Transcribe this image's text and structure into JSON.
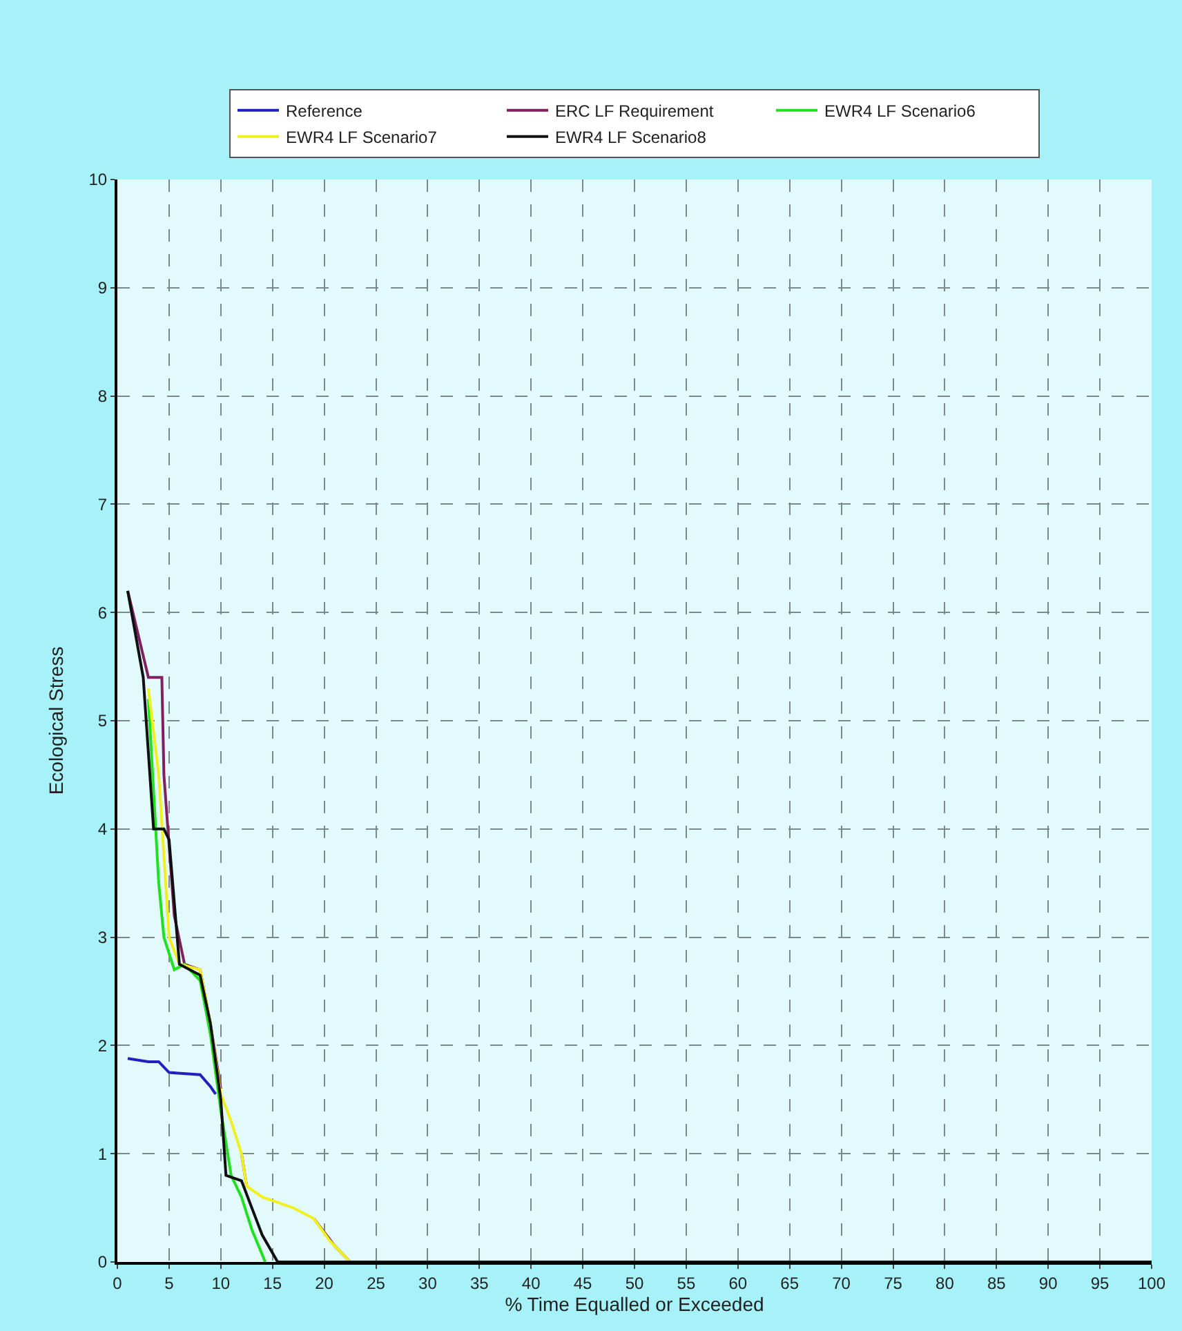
{
  "chart_data": {
    "type": "line",
    "xlabel": "% Time Equalled or Exceeded",
    "ylabel": "Ecological Stress",
    "xlim": [
      0,
      100
    ],
    "ylim": [
      0,
      10
    ],
    "xticks": [
      0,
      5,
      10,
      15,
      20,
      25,
      30,
      35,
      40,
      45,
      50,
      55,
      60,
      65,
      70,
      75,
      80,
      85,
      90,
      95,
      100
    ],
    "yticks": [
      0,
      1,
      2,
      3,
      4,
      5,
      6,
      7,
      8,
      9,
      10
    ],
    "grid": true,
    "legend": "top",
    "marker": "none",
    "line_style": "solid",
    "series": [
      {
        "name": "Reference",
        "color": "#2020c0",
        "x": [
          1,
          3,
          4,
          5,
          8,
          9,
          9.5
        ],
        "values": [
          1.88,
          1.85,
          1.85,
          1.75,
          1.73,
          1.62,
          1.55
        ]
      },
      {
        "name": "ERC LF Requirement",
        "color": "#802060",
        "x": [
          1,
          3,
          4.3,
          4.5,
          5.5,
          6.5,
          8,
          9,
          10,
          11,
          12,
          12.5,
          14,
          17,
          19,
          21,
          22.5
        ],
        "values": [
          6.2,
          5.4,
          5.4,
          4.5,
          3.2,
          2.75,
          2.7,
          2.2,
          1.6,
          null,
          1.0,
          0.7,
          null,
          null,
          0.4,
          0.15,
          0
        ]
      },
      {
        "name": "EWR4 LF Scenario6",
        "color": "#20e020",
        "x": [
          3,
          4,
          4.5,
          5.5,
          6.5,
          8,
          9,
          10,
          11,
          12,
          13,
          14.3
        ],
        "values": [
          5.2,
          3.5,
          3.0,
          2.7,
          2.75,
          2.6,
          2.1,
          1.4,
          0.8,
          0.6,
          0.3,
          0
        ]
      },
      {
        "name": "EWR4 LF Scenario7",
        "color": "#f0f020",
        "x": [
          3,
          4,
          5,
          6,
          8,
          9,
          10,
          11,
          12,
          12.5,
          14,
          17,
          19,
          20.5,
          22.5
        ],
        "values": [
          5.3,
          4.5,
          3.0,
          2.75,
          2.7,
          2.2,
          1.55,
          1.3,
          1.0,
          0.7,
          0.6,
          0.5,
          0.4,
          0.2,
          0
        ]
      },
      {
        "name": "EWR4 LF Scenario8",
        "color": "#101010",
        "x": [
          1,
          2.5,
          3.5,
          4.5,
          5,
          6,
          8,
          9,
          10,
          10.5,
          12,
          13,
          14,
          15.5,
          100
        ],
        "values": [
          6.2,
          5.4,
          4.0,
          4.0,
          3.9,
          2.75,
          2.65,
          2.2,
          1.5,
          0.8,
          0.75,
          0.5,
          0.25,
          0,
          0
        ]
      }
    ]
  }
}
